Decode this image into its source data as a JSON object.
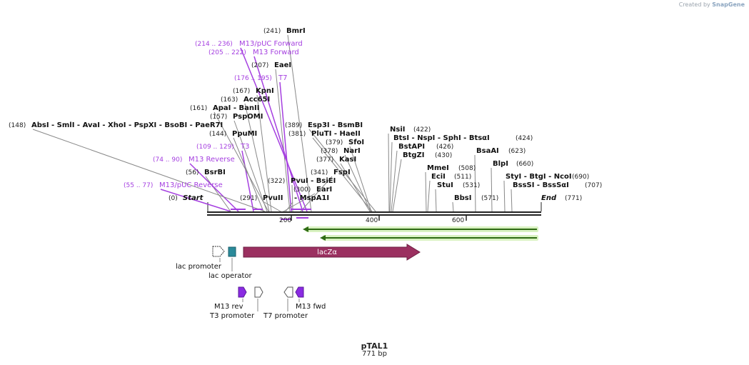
{
  "watermark": {
    "prefix": "Created by",
    "brand": "SnapGene"
  },
  "sequence": {
    "name": "pTAL1",
    "length_label": "771 bp",
    "length": 771
  },
  "ruler": {
    "ticks": [
      "200",
      "400",
      "600"
    ]
  },
  "sites": [
    {
      "pos": "(0)",
      "name": "Start"
    },
    {
      "pos": "(55 .. 77)",
      "name": "M13/pUC Reverse"
    },
    {
      "pos": "(56)",
      "name": "BsrBI"
    },
    {
      "pos": "(74 .. 90)",
      "name": "M13 Reverse"
    },
    {
      "pos": "(109 .. 129)",
      "name": "T3"
    },
    {
      "pos": "(144)",
      "name": "PpuMI"
    },
    {
      "pos": "(148)",
      "name": "AbsI  - SmlI  - AvaI  - XhoI  - PspXI  - BsoBI  - PaeR7I"
    },
    {
      "pos": "(157)",
      "name": "PspOMI"
    },
    {
      "pos": "(161)",
      "name": "ApaI  - BanII"
    },
    {
      "pos": "(163)",
      "name": "Acc65I"
    },
    {
      "pos": "(167)",
      "name": "KpnI"
    },
    {
      "pos": "(176 .. 195)",
      "name": "T7"
    },
    {
      "pos": "(207)",
      "name": "EaeI"
    },
    {
      "pos": "(205 .. 222)",
      "name": "M13 Forward"
    },
    {
      "pos": "(214 .. 236)",
      "name": "M13/pUC Forward"
    },
    {
      "pos": "(241)",
      "name": "BmrI"
    },
    {
      "pos": "(291)",
      "name": "PvuII"
    },
    {
      "pos": "(300)",
      "name": "EarI"
    },
    {
      "pos": "(322)",
      "name": "PvuI  - BsiEI"
    },
    {
      "pos": "(341)",
      "name": "FspI"
    },
    {
      "pos": "(377)",
      "name": "KasI"
    },
    {
      "pos": "(378)",
      "name": "NarI"
    },
    {
      "pos": "(379)",
      "name": "SfoI"
    },
    {
      "pos": "(381)",
      "name": "PluTI  - HaeII"
    },
    {
      "pos": "(389)",
      "name": "Esp3I  - BsmBI"
    },
    {
      "pos": "(422)",
      "name": "NsiI"
    },
    {
      "pos": "(424)",
      "name": "BtsI  - NspI  - SphI  - BtsαI"
    },
    {
      "pos": "(426)",
      "name": "BstAPI"
    },
    {
      "pos": "(430)",
      "name": "BtgZI"
    },
    {
      "pos": "(508)",
      "name": "MmeI"
    },
    {
      "pos": "(511)",
      "name": "EciI"
    },
    {
      "pos": "(531)",
      "name": "StuI"
    },
    {
      "pos": "(571)",
      "name": "BbsI"
    },
    {
      "pos": "(623)",
      "name": "BsaAI"
    },
    {
      "pos": "(660)",
      "name": "BlpI"
    },
    {
      "pos": "(690)",
      "name": "StyI  - BtgI  - NcoI"
    },
    {
      "pos": "(707)",
      "name": "BssSI  - BssSαI"
    },
    {
      "pos": "(771)",
      "name": "End"
    },
    {
      "pos": "",
      "name": "- MspA1I"
    }
  ],
  "features": {
    "lac_promoter": "lac promoter",
    "lac_operator": "lac operator",
    "lacz": "lacZα",
    "m13_rev": "M13 rev",
    "t3_promoter": "T3 promoter",
    "t7_promoter": "T7 promoter",
    "m13_fwd": "M13 fwd"
  },
  "colors": {
    "primer": "#a53fe0",
    "backbone": "#222222",
    "lacz": "#9b3060",
    "operator": "#2a8a9a",
    "orf": "#8fd14f",
    "primer_feature": "#8a2be2"
  }
}
